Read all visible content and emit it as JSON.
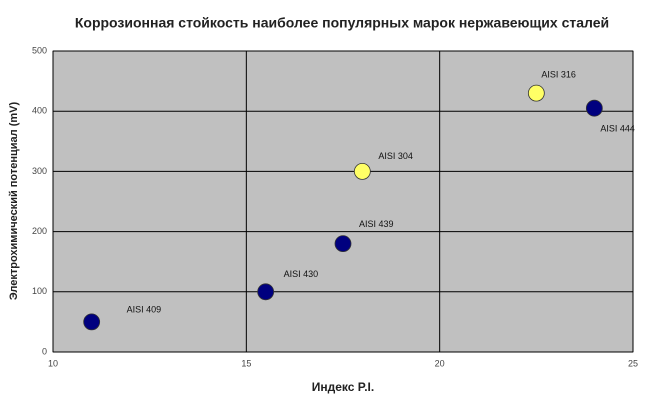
{
  "chart_data": {
    "type": "scatter",
    "title": "Коррозионная стойкость наиболее популярных марок нержавеющих сталей",
    "x_label": "Индекс P.I.",
    "y_label": "Электрохимический потенциал (mV)",
    "x": [
      11,
      15.5,
      17.5,
      18,
      22.5,
      24
    ],
    "values": [
      50,
      100,
      180,
      300,
      430,
      405
    ],
    "point_labels": [
      "AISI 409",
      "AISI 430",
      "AISI 439",
      "AISI 304",
      "AISI 316",
      "AISI 444"
    ],
    "colors": [
      "#00007f",
      "#00007f",
      "#00007f",
      "#ffff66",
      "#ffff66",
      "#00007f"
    ],
    "xlim": [
      10,
      25
    ],
    "xticks": [
      10,
      15,
      20,
      25
    ],
    "ylim": [
      0,
      500
    ],
    "yticks": [
      0,
      100,
      200,
      300,
      400,
      500
    ],
    "grid": true,
    "background": "#c0c0c0"
  }
}
